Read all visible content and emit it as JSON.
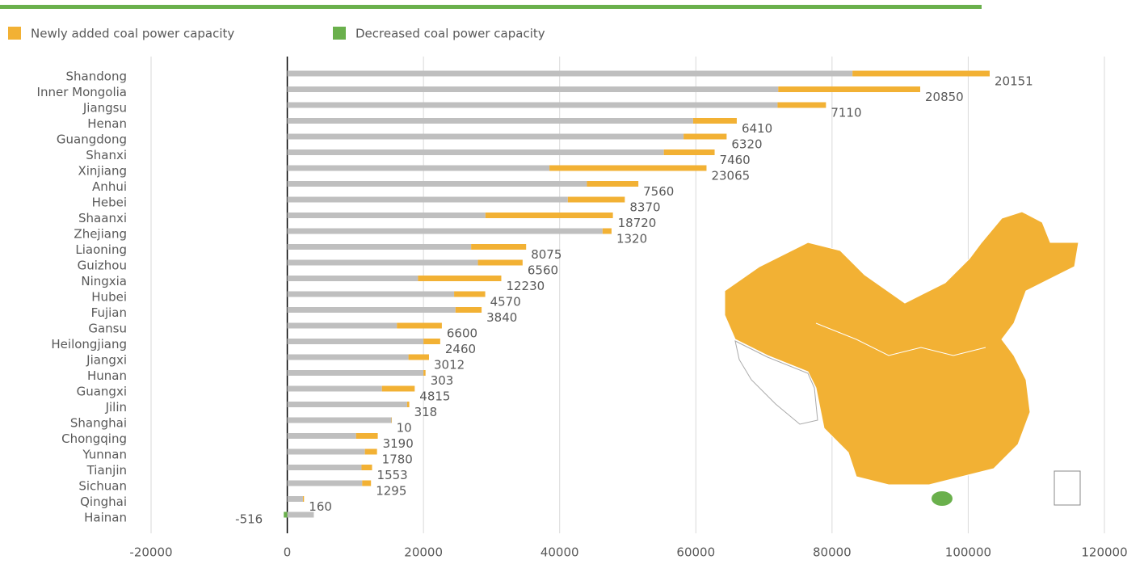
{
  "chart_data": {
    "type": "bar",
    "orientation": "horizontal",
    "stacked": true,
    "categories": [
      "Shandong",
      "Inner Mongolia",
      "Jiangsu",
      "Henan",
      "Guangdong",
      "Shanxi",
      "Xinjiang",
      "Anhui",
      "Hebei",
      "Shaanxi",
      "Zhejiang",
      "Liaoning",
      "Guizhou",
      "Ningxia",
      "Hubei",
      "Fujian",
      "Gansu",
      "Heilongjiang",
      "Jiangxi",
      "Hunan",
      "Guangxi",
      "Jilin",
      "Shanghai",
      "Chongqing",
      "Yunnan",
      "Tianjin",
      "Sichuan",
      "Qinghai",
      "Hainan"
    ],
    "series": [
      {
        "color": "#bfbfbf",
        "values": [
          83000,
          72100,
          72000,
          59600,
          58200,
          55300,
          38500,
          44000,
          41200,
          29100,
          46300,
          27000,
          28000,
          19200,
          24500,
          24700,
          16100,
          20000,
          17800,
          20000,
          13900,
          17600,
          15300,
          10100,
          11400,
          10900,
          11000,
          2300,
          3900
        ]
      },
      {
        "name": "Newly added coal power capacity",
        "color": "#f2b134",
        "values": [
          20151,
          20850,
          7110,
          6410,
          6320,
          7460,
          23065,
          7560,
          8370,
          18720,
          1320,
          8075,
          6560,
          12230,
          4570,
          3840,
          6600,
          2460,
          3012,
          303,
          4815,
          318,
          10,
          3190,
          1780,
          1553,
          1295,
          160,
          null
        ]
      },
      {
        "name": "Decreased coal power capacity",
        "color": "#6ab04c",
        "values": [
          null,
          null,
          null,
          null,
          null,
          null,
          null,
          null,
          null,
          null,
          null,
          null,
          null,
          null,
          null,
          null,
          null,
          null,
          null,
          null,
          null,
          null,
          null,
          null,
          null,
          null,
          null,
          null,
          -516
        ]
      }
    ],
    "xlim": [
      -20000,
      120000
    ],
    "xticks": [
      -20000,
      0,
      20000,
      40000,
      60000,
      80000,
      100000,
      120000
    ],
    "grid": true,
    "legend": "top"
  }
}
